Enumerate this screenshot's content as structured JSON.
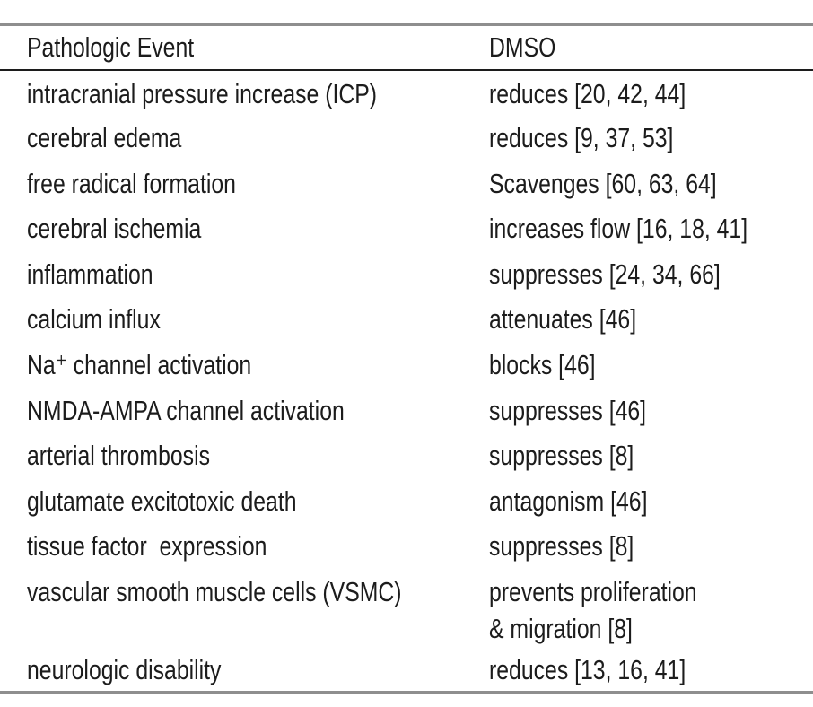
{
  "table": {
    "columns": [
      {
        "label": "Pathologic Event"
      },
      {
        "label": "DMSO"
      }
    ],
    "rows": [
      {
        "event": "intracranial pressure increase (ICP)",
        "dmso": "reduces [20, 42, 44]"
      },
      {
        "event": "cerebral edema",
        "dmso": "reduces [9, 37, 53]"
      },
      {
        "event": "free radical formation",
        "dmso": "Scavenges [60, 63, 64]"
      },
      {
        "event": "cerebral ischemia",
        "dmso": "increases flow [16, 18, 41]"
      },
      {
        "event": "inflammation",
        "dmso": "suppresses [24, 34, 66]"
      },
      {
        "event": "calcium influx",
        "dmso": "attenuates [46]"
      },
      {
        "event": "Na⁺ channel activation",
        "dmso": "blocks [46]"
      },
      {
        "event": "NMDA-AMPA channel activation",
        "dmso": "suppresses [46]"
      },
      {
        "event": "arterial thrombosis",
        "dmso": "suppresses [8]"
      },
      {
        "event": "glutamate excitotoxic death",
        "dmso": "antagonism [46]"
      },
      {
        "event": "tissue factor  expression",
        "dmso": "suppresses [8]"
      },
      {
        "event": "vascular smooth muscle cells (VSMC)",
        "dmso": "prevents proliferation\n& migration [8]"
      },
      {
        "event": "neurologic disability",
        "dmso": "reduces [13, 16, 41]"
      }
    ]
  },
  "colors": {
    "text": "#1c1c1c",
    "rule_outer": "#8e8e8e",
    "rule_header": "#1c1c1c",
    "background": "#ffffff"
  }
}
